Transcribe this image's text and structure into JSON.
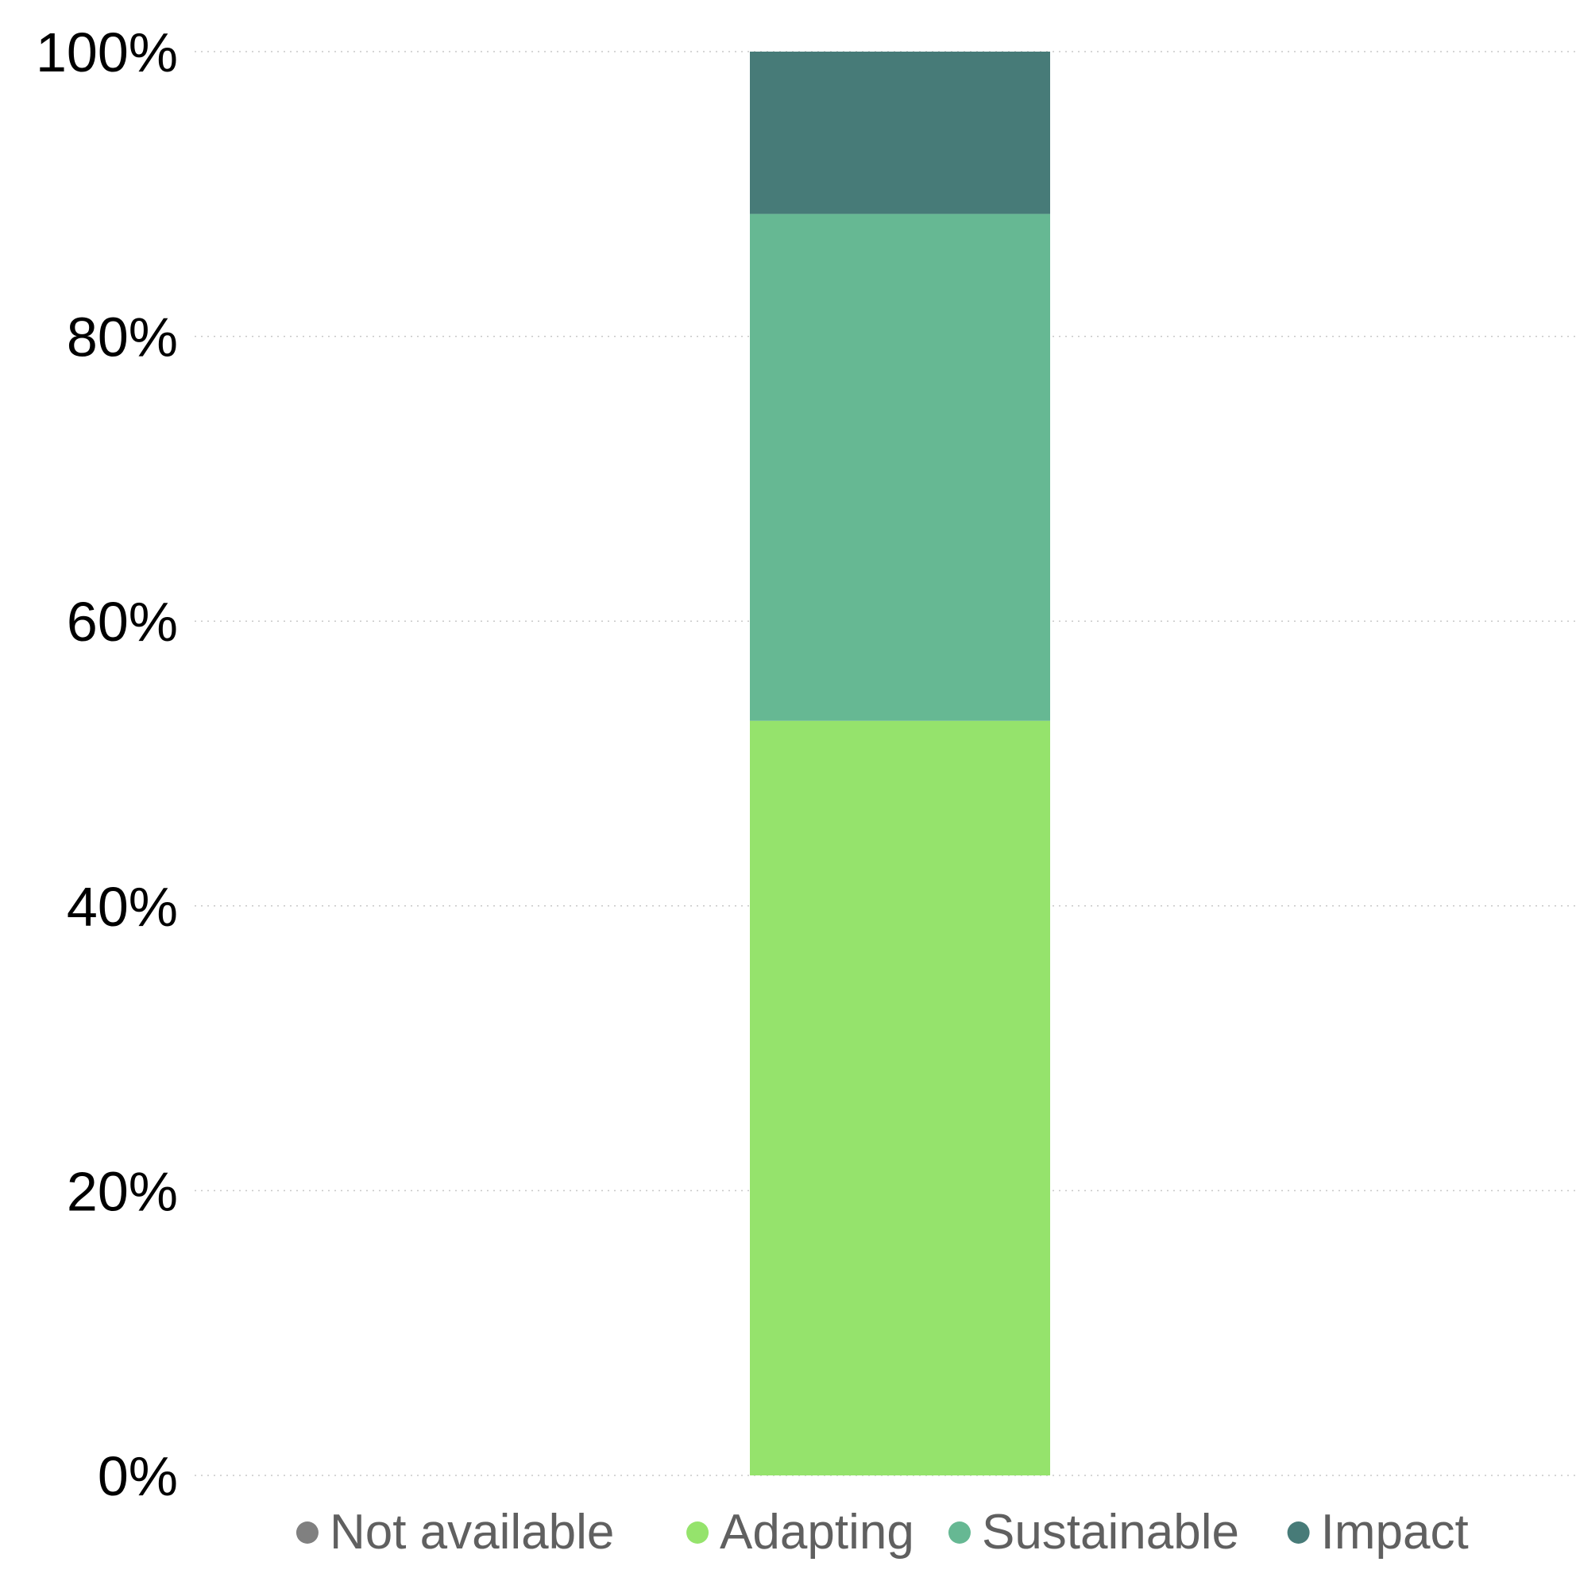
{
  "chart_data": {
    "type": "bar",
    "stacked": true,
    "title": "",
    "xlabel": "",
    "ylabel": "",
    "ylim": [
      0,
      100
    ],
    "y_ticks": [
      0,
      20,
      40,
      60,
      80,
      100
    ],
    "y_tick_labels": [
      "0%",
      "20%",
      "40%",
      "60%",
      "80%",
      "100%"
    ],
    "grid": "horizontal dotted",
    "legend_position": "bottom",
    "categories": [
      ""
    ],
    "series": [
      {
        "name": "Not available",
        "color": "#808080",
        "values": [
          0
        ]
      },
      {
        "name": "Adapting",
        "color": "#95e36c",
        "values": [
          53
        ]
      },
      {
        "name": "Sustainable",
        "color": "#66b893",
        "values": [
          35.6
        ]
      },
      {
        "name": "Impact",
        "color": "#477b78",
        "values": [
          11.4
        ]
      }
    ]
  }
}
